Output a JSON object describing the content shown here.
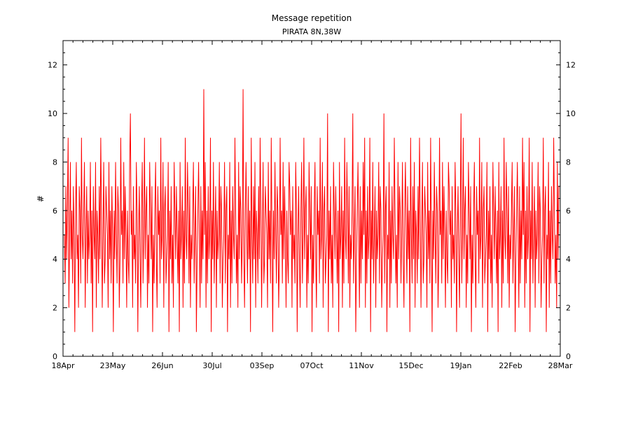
{
  "chart_data": {
    "type": "line",
    "title": "Message repetition",
    "subtitle": "PIRATA 8N,38W",
    "xlabel": "",
    "ylabel": "#",
    "x_tick_labels": [
      "18Apr",
      "23May",
      "26Jun",
      "30Jul",
      "03Sep",
      "07Oct",
      "11Nov",
      "15Dec",
      "19Jan",
      "22Feb",
      "28Mar"
    ],
    "y_ticks": [
      0,
      2,
      4,
      6,
      8,
      10,
      12
    ],
    "ylim": [
      0,
      13
    ],
    "grid": false,
    "series": [
      {
        "name": "",
        "color": "#ff0000",
        "values_note_free": true,
        "values": [
          5,
          3,
          7,
          4,
          6,
          9,
          2,
          5,
          8,
          4,
          6,
          3,
          7,
          5,
          1,
          6,
          8,
          4,
          5,
          2,
          7,
          6,
          3,
          9,
          5,
          4,
          6,
          8,
          2,
          5,
          7,
          3,
          6,
          4,
          5,
          8,
          3,
          6,
          1,
          7,
          5,
          4,
          8,
          2,
          6,
          5,
          3,
          7,
          4,
          9,
          6,
          2,
          5,
          8,
          3,
          4,
          7,
          6,
          5,
          2,
          8,
          4,
          6,
          3,
          7,
          5,
          1,
          6,
          4,
          8,
          5,
          3,
          7,
          6,
          2,
          4,
          9,
          5,
          6,
          3,
          8,
          4,
          7,
          5,
          2,
          6,
          4,
          3,
          8,
          10,
          5,
          6,
          2,
          7,
          4,
          5,
          3,
          8,
          6,
          1,
          5,
          7,
          4,
          2,
          6,
          8,
          3,
          5,
          9,
          4,
          6,
          7,
          2,
          5,
          3,
          8,
          6,
          4,
          7,
          1,
          5,
          3,
          6,
          8,
          4,
          2,
          7,
          5,
          6,
          3,
          9,
          4,
          5,
          8,
          2,
          6,
          7,
          3,
          4,
          5,
          8,
          1,
          6,
          4,
          7,
          3,
          5,
          2,
          8,
          6,
          4,
          7,
          5,
          3,
          6,
          1,
          8,
          4,
          5,
          7,
          2,
          6,
          3,
          9,
          5,
          4,
          8,
          6,
          3,
          7,
          2,
          5,
          4,
          6,
          8,
          3,
          5,
          7,
          1,
          4,
          6,
          8,
          5,
          2,
          7,
          3,
          6,
          4,
          11,
          5,
          8,
          2,
          6,
          3,
          7,
          4,
          5,
          9,
          1,
          6,
          4,
          8,
          3,
          5,
          7,
          2,
          6,
          4,
          5,
          8,
          3,
          7,
          6,
          2,
          4,
          5,
          8,
          3,
          6,
          7,
          1,
          5,
          4,
          8,
          2,
          6,
          3,
          7,
          5,
          4,
          9,
          6,
          3,
          5,
          2,
          8,
          4,
          7,
          6,
          3,
          5,
          11,
          4,
          2,
          6,
          8,
          5,
          3,
          7,
          4,
          6,
          1,
          9,
          5,
          3,
          7,
          4,
          8,
          2,
          6,
          5,
          3,
          7,
          4,
          9,
          6,
          2,
          5,
          8,
          3,
          4,
          7,
          6,
          5,
          2,
          8,
          4,
          6,
          3,
          9,
          5,
          1,
          6,
          4,
          8,
          5,
          3,
          7,
          6,
          2,
          4,
          9,
          5,
          6,
          3,
          8,
          4,
          7,
          5,
          2,
          6,
          4,
          3,
          8,
          7,
          5,
          6,
          2,
          7,
          4,
          5,
          3,
          8,
          6,
          1,
          5,
          7,
          4,
          2,
          6,
          8,
          3,
          5,
          9,
          4,
          6,
          7,
          2,
          5,
          3,
          8,
          6,
          4,
          7,
          1,
          5,
          3,
          6,
          8,
          4,
          2,
          7,
          5,
          6,
          3,
          9,
          4,
          5,
          8,
          2,
          6,
          7,
          3,
          4,
          5,
          10,
          1,
          6,
          4,
          7,
          3,
          5,
          2,
          8,
          6,
          4,
          7,
          5,
          3,
          6,
          1,
          8,
          4,
          5,
          7,
          2,
          6,
          3,
          9,
          5,
          4,
          8,
          6,
          3,
          7,
          2,
          5,
          4,
          6,
          10,
          3,
          5,
          7,
          1,
          4,
          6,
          8,
          5,
          2,
          7,
          3,
          6,
          4,
          8,
          5,
          9,
          2,
          6,
          3,
          7,
          4,
          5,
          9,
          1,
          6,
          4,
          8,
          3,
          5,
          7,
          2,
          6,
          4,
          5,
          8,
          3,
          7,
          6,
          2,
          4,
          5,
          10,
          3,
          6,
          7,
          1,
          5,
          4,
          8,
          2,
          6,
          3,
          7,
          5,
          4,
          9,
          6,
          3,
          5,
          2,
          8,
          4,
          7,
          6,
          3,
          5,
          8,
          4,
          2,
          6,
          8,
          5,
          3,
          7,
          4,
          6,
          1,
          9,
          5,
          3,
          7,
          4,
          8,
          2,
          6,
          5,
          3,
          7,
          4,
          9,
          6,
          2,
          5,
          8,
          3,
          4,
          7,
          6,
          5,
          2,
          8,
          4,
          6,
          3,
          9,
          5,
          1,
          6,
          4,
          8,
          5,
          3,
          7,
          6,
          2,
          4,
          9,
          5,
          6,
          3,
          8,
          4,
          7,
          5,
          2,
          6,
          4,
          3,
          8,
          7,
          5,
          6,
          2,
          7,
          4,
          5,
          3,
          8,
          6,
          1,
          5,
          7,
          4,
          2,
          6,
          10,
          3,
          5,
          9,
          4,
          6,
          7,
          2,
          5,
          3,
          8,
          6,
          4,
          7,
          1,
          5,
          3,
          6,
          8,
          4,
          2,
          7,
          5,
          6,
          3,
          9,
          4,
          5,
          8,
          2,
          6,
          7,
          3,
          4,
          5,
          8,
          1,
          6,
          4,
          7,
          3,
          5,
          2,
          8,
          6,
          4,
          7,
          5,
          3,
          6,
          1,
          8,
          4,
          5,
          7,
          2,
          6,
          3,
          9,
          5,
          4,
          8,
          6,
          3,
          7,
          2,
          5,
          4,
          6,
          8,
          3,
          5,
          7,
          1,
          4,
          6,
          8,
          5,
          2,
          7,
          3,
          6,
          4,
          9,
          5,
          8,
          2,
          6,
          3,
          7,
          4,
          5,
          9,
          1,
          6,
          4,
          8,
          3,
          5,
          7,
          2,
          6,
          4,
          5,
          8,
          3,
          7,
          6,
          2,
          4,
          5,
          9,
          3,
          6,
          7,
          1,
          5,
          4,
          8,
          2,
          6,
          3,
          7,
          5,
          4,
          9,
          6,
          3,
          5,
          2,
          8,
          4,
          7
        ]
      }
    ]
  }
}
